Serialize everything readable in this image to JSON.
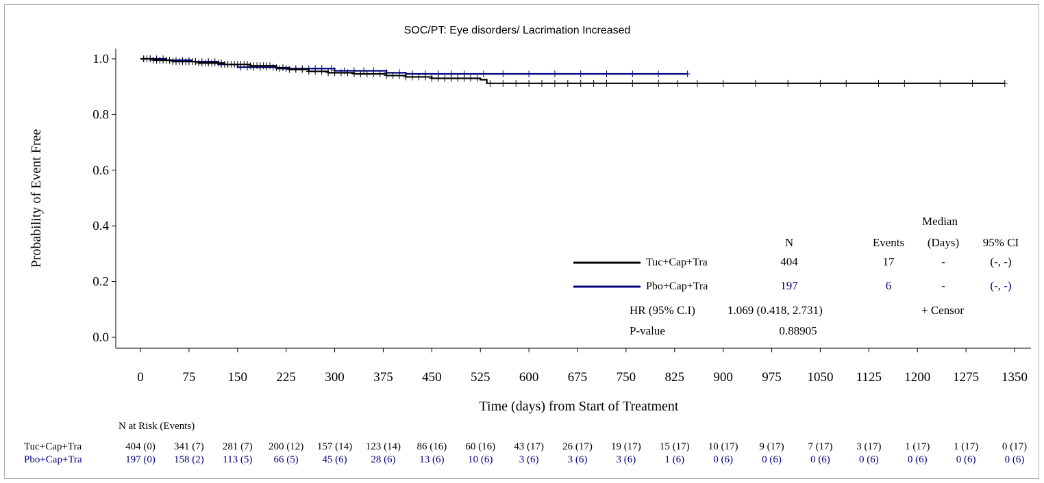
{
  "chart_data": {
    "type": "line",
    "title": "SOC/PT: Eye disorders/ Lacrimation Increased",
    "xlabel": "Time (days) from Start of Treatment",
    "ylabel": "Probability of Event Free",
    "xlim": [
      0,
      1350
    ],
    "ylim": [
      0,
      1.0
    ],
    "x_ticks": [
      "0",
      "75",
      "150",
      "225",
      "300",
      "375",
      "450",
      "525",
      "600",
      "675",
      "750",
      "825",
      "900",
      "975",
      "1050",
      "1125",
      "1200",
      "1275",
      "1350"
    ],
    "y_ticks": [
      "0.0",
      "0.2",
      "0.4",
      "0.6",
      "0.8",
      "1.0"
    ],
    "grid": false,
    "colors": {
      "tuc": "#000000",
      "pbo": "#000080"
    },
    "series": [
      {
        "name": "Tuc+Cap+Tra",
        "color": "#000000",
        "steps": [
          [
            0,
            1.0
          ],
          [
            20,
            0.995
          ],
          [
            50,
            0.99
          ],
          [
            90,
            0.985
          ],
          [
            130,
            0.98
          ],
          [
            170,
            0.975
          ],
          [
            210,
            0.968
          ],
          [
            230,
            0.962
          ],
          [
            260,
            0.955
          ],
          [
            290,
            0.95
          ],
          [
            330,
            0.946
          ],
          [
            380,
            0.94
          ],
          [
            410,
            0.935
          ],
          [
            450,
            0.93
          ],
          [
            525,
            0.925
          ],
          [
            535,
            0.912
          ],
          [
            1335,
            0.912
          ]
        ],
        "censor_x": [
          5,
          10,
          15,
          20,
          25,
          30,
          35,
          40,
          45,
          50,
          55,
          60,
          65,
          70,
          75,
          80,
          85,
          90,
          95,
          100,
          105,
          110,
          115,
          120,
          125,
          130,
          135,
          140,
          145,
          150,
          155,
          160,
          165,
          170,
          175,
          180,
          185,
          190,
          195,
          200,
          210,
          220,
          230,
          240,
          250,
          260,
          270,
          280,
          290,
          300,
          310,
          320,
          330,
          340,
          350,
          360,
          370,
          380,
          390,
          400,
          410,
          420,
          430,
          440,
          450,
          460,
          470,
          480,
          490,
          500,
          510,
          520,
          540,
          560,
          580,
          600,
          620,
          640,
          660,
          680,
          700,
          720,
          760,
          800,
          830,
          860,
          900,
          950,
          1000,
          1050,
          1090,
          1140,
          1180,
          1235,
          1285,
          1335
        ]
      },
      {
        "name": "Pbo+Cap+Tra",
        "color": "#000080",
        "steps": [
          [
            0,
            1.0
          ],
          [
            40,
            0.995
          ],
          [
            80,
            0.99
          ],
          [
            120,
            0.98
          ],
          [
            150,
            0.97
          ],
          [
            210,
            0.965
          ],
          [
            300,
            0.957
          ],
          [
            380,
            0.95
          ],
          [
            410,
            0.946
          ],
          [
            845,
            0.946
          ]
        ],
        "censor_x": [
          5,
          15,
          25,
          35,
          45,
          55,
          65,
          75,
          85,
          95,
          105,
          115,
          125,
          135,
          145,
          155,
          165,
          175,
          185,
          195,
          205,
          215,
          225,
          240,
          250,
          260,
          270,
          280,
          295,
          300,
          315,
          330,
          345,
          360,
          380,
          400,
          420,
          440,
          460,
          480,
          500,
          530,
          560,
          600,
          640,
          680,
          720,
          760,
          800,
          845
        ]
      }
    ],
    "legend": {
      "header_median": "Median",
      "header_n": "N",
      "header_events": "Events",
      "header_days": "(Days)",
      "header_ci": "95% CI",
      "rows": [
        {
          "label": "Tuc+Cap+Tra",
          "n": "404",
          "events": "17",
          "median": "-",
          "ci": "(-, -)"
        },
        {
          "label": "Pbo+Cap+Tra",
          "n": "197",
          "events": "6",
          "median": "-",
          "ci": "(-, -)"
        }
      ],
      "hr_label": "HR (95% C.I)",
      "hr_value": "1.069 (0.418, 2.731)",
      "censor_label": "+ Censor",
      "p_label": "P-value",
      "p_value": "0.88905"
    },
    "risk_table": {
      "title": "N at Risk (Events)",
      "rows": [
        {
          "label": "Tuc+Cap+Tra",
          "values": [
            "404 (0)",
            "341 (7)",
            "281 (7)",
            "200 (12)",
            "157 (14)",
            "123 (14)",
            "86 (16)",
            "60 (16)",
            "43 (17)",
            "26 (17)",
            "19 (17)",
            "15 (17)",
            "10 (17)",
            "9 (17)",
            "7 (17)",
            "3 (17)",
            "1 (17)",
            "1 (17)",
            "0 (17)"
          ]
        },
        {
          "label": "Pbo+Cap+Tra",
          "values": [
            "197 (0)",
            "158 (2)",
            "113 (5)",
            "66 (5)",
            "45 (6)",
            "28 (6)",
            "13 (6)",
            "10 (6)",
            "3 (6)",
            "3 (6)",
            "3 (6)",
            "1 (6)",
            "0 (6)",
            "0 (6)",
            "0 (6)",
            "0 (6)",
            "0 (6)",
            "0 (6)",
            "0 (6)"
          ]
        }
      ]
    }
  }
}
